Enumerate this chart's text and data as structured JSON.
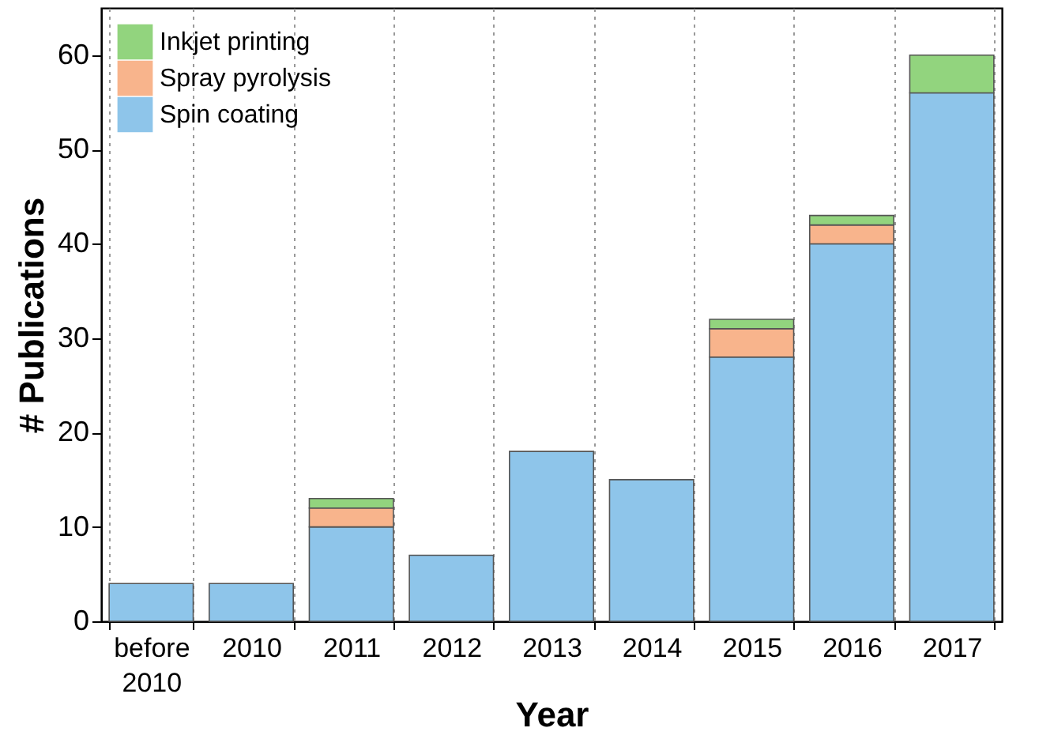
{
  "chart_data": {
    "type": "bar",
    "stacked": true,
    "xlabel": "Year",
    "ylabel": "# Publications",
    "categories": [
      "before 2010",
      "2010",
      "2011",
      "2012",
      "2013",
      "2014",
      "2015",
      "2016",
      "2017"
    ],
    "series": [
      {
        "name": "Spin coating",
        "color": "#8ec5ea",
        "values": [
          4,
          4,
          10,
          7,
          18,
          15,
          28,
          40,
          56
        ]
      },
      {
        "name": "Spray pyrolysis",
        "color": "#f8b48c",
        "values": [
          null,
          null,
          2,
          null,
          null,
          null,
          3,
          2,
          null
        ]
      },
      {
        "name": "Inkjet printing",
        "color": "#92d47e",
        "values": [
          null,
          null,
          1,
          null,
          null,
          null,
          1,
          1,
          4
        ]
      }
    ],
    "ylim": [
      0,
      65
    ],
    "yticks": [
      0,
      10,
      20,
      30,
      40,
      50,
      60
    ],
    "grid": "x",
    "legend": "top left"
  }
}
